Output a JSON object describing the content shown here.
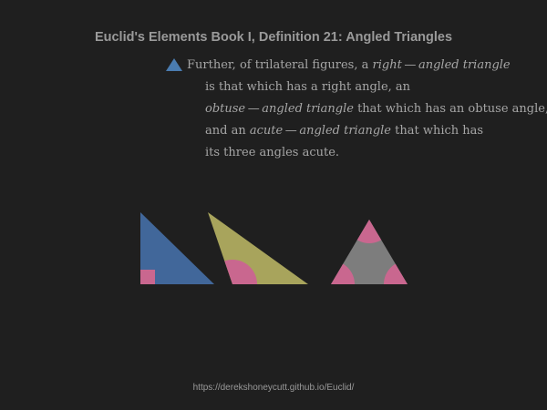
{
  "title": "Euclid's Elements Book I, Definition 21: Angled Triangles",
  "definition": {
    "line1_a": "Further, of trilateral figures, a ",
    "line1_term": "right — angled triangle",
    "line2": "is that which has a right angle, an",
    "line3_term": "obtuse — angled triangle",
    "line3_b": " that which has an obtuse angle,",
    "line4_a": "and an ",
    "line4_term": "acute — angled triangle",
    "line4_b": " that which has",
    "line5": "its three angles acute."
  },
  "footer": "https://derekshoneycutt.github.io/Euclid/",
  "colors": {
    "background": "#1f1f1f",
    "bullet": "#4a7cb0",
    "right_triangle": "#41679a",
    "obtuse_triangle": "#a8a45c",
    "acute_triangle": "#7d7d7d",
    "angle_mark": "#c9678f"
  }
}
